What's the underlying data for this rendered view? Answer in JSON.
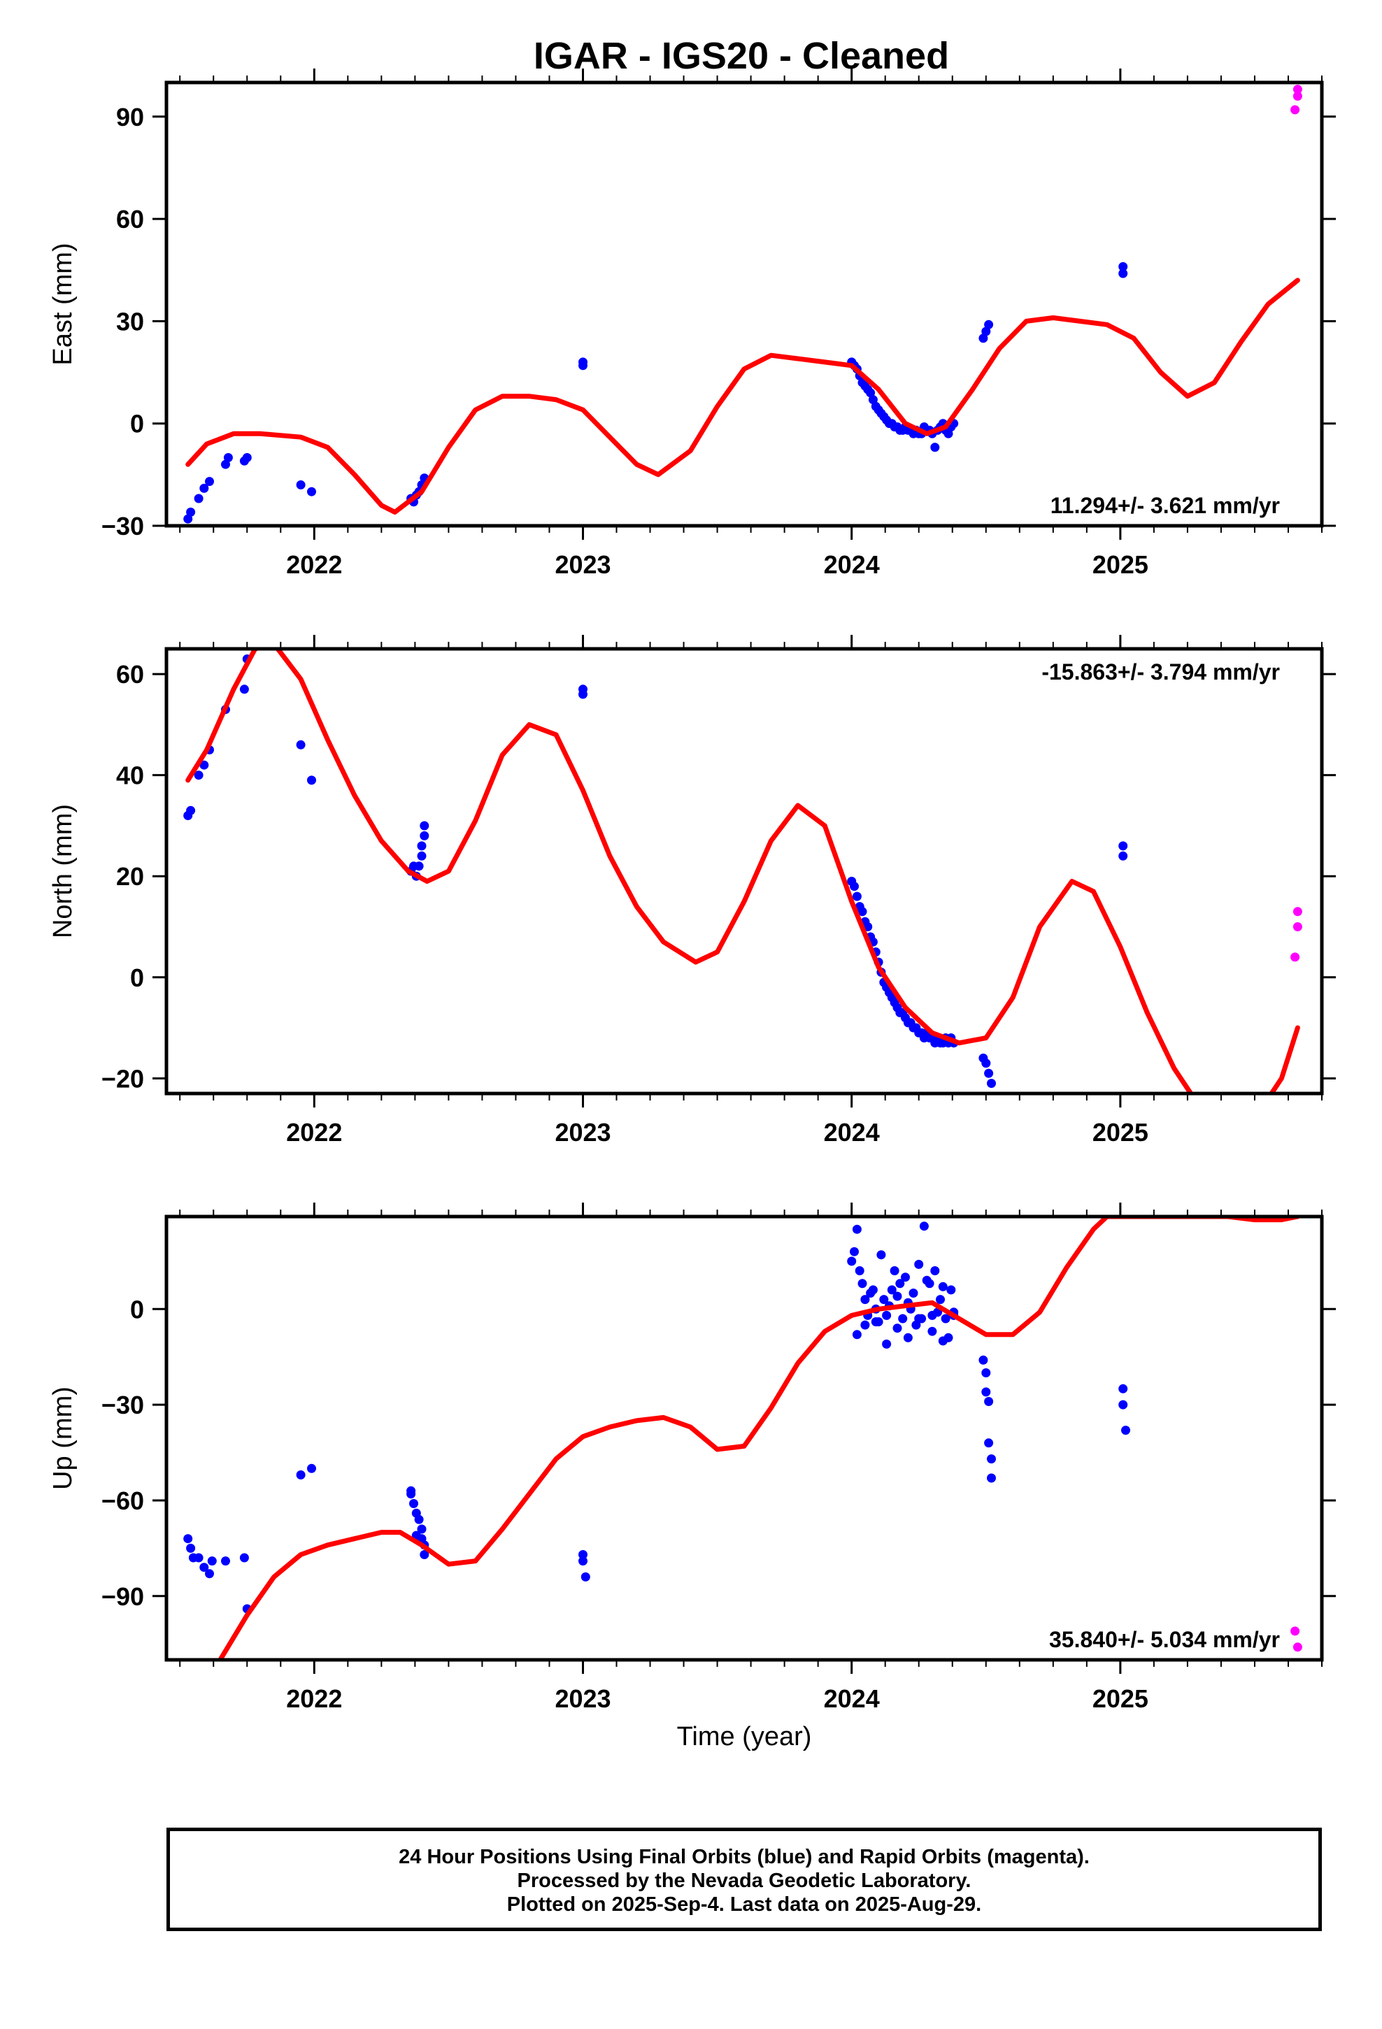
{
  "figure": {
    "title": "IGAR  - IGS20 - Cleaned",
    "xlabel": "Time (year)",
    "footer_lines": [
      "24 Hour Positions Using Final Orbits (blue) and Rapid Orbits (magenta).",
      "Processed by the Nevada Geodetic Laboratory.",
      "Plotted on 2025-Sep-4. Last data on 2025-Aug-29."
    ],
    "colors": {
      "final": "#0000ff",
      "rapid": "#ff00ff",
      "model": "#ff0000"
    }
  },
  "chart_data": [
    {
      "type": "scatter",
      "ylabel": "East (mm)",
      "rate_label": "11.294+/- 3.621 mm/yr",
      "rate_position": "bottom-right",
      "xlim": [
        2021.45,
        2025.75
      ],
      "ylim": [
        -30,
        100
      ],
      "xticks": [
        2022,
        2023,
        2024,
        2025
      ],
      "yticks": [
        -30,
        0,
        30,
        60,
        90
      ],
      "series": [
        {
          "role": "final",
          "x": [
            2021.53,
            2021.54,
            2021.57,
            2021.59,
            2021.61,
            2021.67,
            2021.68,
            2021.74,
            2021.75,
            2021.95,
            2021.99,
            2022.36,
            2022.37,
            2022.38,
            2022.39,
            2022.4,
            2022.41,
            2023.0,
            2023.0,
            2024.0,
            2024.01,
            2024.02,
            2024.03,
            2024.04,
            2024.05,
            2024.06,
            2024.07,
            2024.08,
            2024.09,
            2024.1,
            2024.11,
            2024.12,
            2024.13,
            2024.14,
            2024.15,
            2024.16,
            2024.17,
            2024.18,
            2024.19,
            2024.2,
            2024.21,
            2024.22,
            2024.23,
            2024.24,
            2024.25,
            2024.26,
            2024.27,
            2024.28,
            2024.29,
            2024.3,
            2024.31,
            2024.32,
            2024.33,
            2024.34,
            2024.35,
            2024.36,
            2024.37,
            2024.38,
            2024.49,
            2024.5,
            2024.51,
            2025.01,
            2025.01
          ],
          "y": [
            -28,
            -26,
            -22,
            -19,
            -17,
            -12,
            -10,
            -11,
            -10,
            -18,
            -20,
            -22,
            -23,
            -21,
            -20,
            -18,
            -16,
            17,
            18,
            18,
            17,
            16,
            14,
            12,
            11,
            10,
            9,
            7,
            5,
            4,
            3,
            2,
            1,
            0,
            0,
            -1,
            -1,
            -2,
            -2,
            -1,
            -2,
            -2,
            -3,
            -2,
            -3,
            -3,
            -1,
            -2,
            -2,
            -3,
            -7,
            -2,
            -1,
            0,
            -2,
            -3,
            -1,
            0,
            25,
            27,
            29,
            44,
            46
          ]
        },
        {
          "role": "rapid",
          "x": [
            2025.65,
            2025.66,
            2025.66
          ],
          "y": [
            92,
            96,
            98
          ]
        },
        {
          "role": "model",
          "x": [
            2021.53,
            2021.6,
            2021.7,
            2021.8,
            2021.95,
            2022.05,
            2022.15,
            2022.25,
            2022.3,
            2022.4,
            2022.5,
            2022.6,
            2022.7,
            2022.8,
            2022.9,
            2023.0,
            2023.1,
            2023.2,
            2023.28,
            2023.4,
            2023.5,
            2023.6,
            2023.7,
            2023.8,
            2023.9,
            2024.0,
            2024.1,
            2024.2,
            2024.28,
            2024.35,
            2024.45,
            2024.55,
            2024.65,
            2024.75,
            2024.85,
            2024.95,
            2025.05,
            2025.15,
            2025.25,
            2025.35,
            2025.45,
            2025.55,
            2025.66
          ],
          "y": [
            -12,
            -6,
            -3,
            -3,
            -4,
            -7,
            -15,
            -24,
            -26,
            -20,
            -7,
            4,
            8,
            8,
            7,
            4,
            -4,
            -12,
            -15,
            -8,
            5,
            16,
            20,
            19,
            18,
            17,
            10,
            0,
            -3,
            -1,
            10,
            22,
            30,
            31,
            30,
            29,
            25,
            15,
            8,
            12,
            24,
            35,
            42
          ]
        }
      ]
    },
    {
      "type": "scatter",
      "ylabel": "North (mm)",
      "rate_label": "-15.863+/- 3.794 mm/yr",
      "rate_position": "top-right",
      "xlim": [
        2021.45,
        2025.75
      ],
      "ylim": [
        -23,
        65
      ],
      "xticks": [
        2022,
        2023,
        2024,
        2025
      ],
      "yticks": [
        -20,
        0,
        20,
        40,
        60
      ],
      "series": [
        {
          "role": "final",
          "x": [
            2021.53,
            2021.54,
            2021.57,
            2021.59,
            2021.61,
            2021.67,
            2021.74,
            2021.75,
            2021.95,
            2021.99,
            2022.36,
            2022.37,
            2022.38,
            2022.39,
            2022.4,
            2022.4,
            2022.41,
            2022.41,
            2023.0,
            2023.0,
            2024.0,
            2024.01,
            2024.02,
            2024.03,
            2024.04,
            2024.05,
            2024.06,
            2024.07,
            2024.08,
            2024.09,
            2024.1,
            2024.11,
            2024.12,
            2024.13,
            2024.14,
            2024.15,
            2024.16,
            2024.17,
            2024.18,
            2024.19,
            2024.2,
            2024.21,
            2024.22,
            2024.23,
            2024.24,
            2024.25,
            2024.26,
            2024.27,
            2024.28,
            2024.29,
            2024.3,
            2024.31,
            2024.32,
            2024.33,
            2024.34,
            2024.35,
            2024.36,
            2024.37,
            2024.38,
            2024.49,
            2024.5,
            2024.51,
            2024.52,
            2025.01,
            2025.01
          ],
          "y": [
            32,
            33,
            40,
            42,
            45,
            53,
            57,
            63,
            46,
            39,
            21,
            22,
            20,
            22,
            24,
            26,
            28,
            30,
            56,
            57,
            19,
            18,
            16,
            14,
            13,
            11,
            10,
            8,
            7,
            5,
            3,
            1,
            -1,
            -2,
            -3,
            -4,
            -5,
            -6,
            -7,
            -7,
            -8,
            -9,
            -9,
            -10,
            -10,
            -11,
            -11,
            -12,
            -11,
            -12,
            -12,
            -13,
            -12,
            -13,
            -13,
            -12,
            -13,
            -12,
            -13,
            -16,
            -17,
            -19,
            -21,
            24,
            26
          ]
        },
        {
          "role": "rapid",
          "x": [
            2025.65,
            2025.66,
            2025.66
          ],
          "y": [
            4,
            10,
            13
          ]
        },
        {
          "role": "model",
          "x": [
            2021.53,
            2021.6,
            2021.7,
            2021.78,
            2021.85,
            2021.95,
            2022.05,
            2022.15,
            2022.25,
            2022.35,
            2022.42,
            2022.5,
            2022.6,
            2022.7,
            2022.8,
            2022.9,
            2023.0,
            2023.1,
            2023.2,
            2023.3,
            2023.42,
            2023.5,
            2023.6,
            2023.7,
            2023.8,
            2023.9,
            2024.0,
            2024.1,
            2024.2,
            2024.3,
            2024.4,
            2024.5,
            2024.6,
            2024.7,
            2024.82,
            2024.9,
            2025.0,
            2025.1,
            2025.2,
            2025.3,
            2025.4,
            2025.5,
            2025.6,
            2025.66
          ],
          "y": [
            39,
            45,
            57,
            65,
            66,
            59,
            47,
            36,
            27,
            21,
            19,
            21,
            31,
            44,
            50,
            48,
            37,
            24,
            14,
            7,
            3,
            5,
            15,
            27,
            34,
            30,
            15,
            2,
            -6,
            -11,
            -13,
            -12,
            -4,
            10,
            19,
            17,
            6,
            -7,
            -18,
            -26,
            -29,
            -28,
            -20,
            -10
          ]
        }
      ]
    },
    {
      "type": "scatter",
      "ylabel": "Up (mm)",
      "rate_label": "35.840+/- 5.034 mm/yr",
      "rate_position": "bottom-right",
      "xlim": [
        2021.45,
        2025.75
      ],
      "ylim": [
        -110,
        29
      ],
      "xticks": [
        2022,
        2023,
        2024,
        2025
      ],
      "yticks": [
        -90,
        -60,
        -30,
        0
      ],
      "series": [
        {
          "role": "final",
          "x": [
            2021.53,
            2021.54,
            2021.55,
            2021.57,
            2021.59,
            2021.61,
            2021.62,
            2021.67,
            2021.74,
            2021.75,
            2021.95,
            2021.99,
            2022.36,
            2022.37,
            2022.38,
            2022.39,
            2022.4,
            2022.4,
            2022.41,
            2022.41,
            2022.36,
            2022.38,
            2023.0,
            2023.0,
            2023.01,
            2024.0,
            2024.01,
            2024.02,
            2024.03,
            2024.04,
            2024.05,
            2024.06,
            2024.07,
            2024.08,
            2024.09,
            2024.1,
            2024.11,
            2024.12,
            2024.13,
            2024.14,
            2024.15,
            2024.16,
            2024.17,
            2024.18,
            2024.19,
            2024.2,
            2024.21,
            2024.22,
            2024.23,
            2024.24,
            2024.25,
            2024.26,
            2024.27,
            2024.28,
            2024.29,
            2024.3,
            2024.31,
            2024.32,
            2024.33,
            2024.34,
            2024.35,
            2024.36,
            2024.37,
            2024.38,
            2024.02,
            2024.05,
            2024.09,
            2024.13,
            2024.17,
            2024.21,
            2024.25,
            2024.3,
            2024.34,
            2024.38,
            2024.49,
            2024.5,
            2024.5,
            2024.51,
            2024.51,
            2024.52,
            2024.52,
            2025.01,
            2025.01,
            2025.02
          ],
          "y": [
            -72,
            -75,
            -78,
            -78,
            -81,
            -83,
            -79,
            -79,
            -78,
            -94,
            -52,
            -50,
            -57,
            -61,
            -64,
            -66,
            -69,
            -72,
            -74,
            -77,
            -58,
            -71,
            -77,
            -79,
            -84,
            15,
            18,
            25,
            12,
            8,
            3,
            -2,
            5,
            6,
            0,
            -4,
            17,
            3,
            -2,
            1,
            6,
            12,
            4,
            8,
            -3,
            10,
            2,
            0,
            5,
            -5,
            14,
            -3,
            26,
            9,
            8,
            -7,
            12,
            -1,
            3,
            7,
            -3,
            -9,
            6,
            -2,
            -8,
            -5,
            -4,
            -11,
            -6,
            -9,
            -3,
            -2,
            -10,
            -1,
            -16,
            -20,
            -26,
            -29,
            -42,
            -47,
            -53,
            -25,
            -30,
            -38
          ]
        },
        {
          "role": "rapid",
          "x": [
            2025.65,
            2025.66
          ],
          "y": [
            -101,
            -106
          ]
        },
        {
          "role": "model",
          "x": [
            2021.65,
            2021.75,
            2021.85,
            2021.95,
            2022.05,
            2022.15,
            2022.25,
            2022.32,
            2022.4,
            2022.5,
            2022.6,
            2022.7,
            2022.8,
            2022.9,
            2023.0,
            2023.1,
            2023.2,
            2023.3,
            2023.4,
            2023.5,
            2023.6,
            2023.7,
            2023.8,
            2023.9,
            2024.0,
            2024.1,
            2024.2,
            2024.3,
            2024.4,
            2024.5,
            2024.6,
            2024.7,
            2024.8,
            2024.9,
            2024.95,
            2025.4,
            2025.5,
            2025.6,
            2025.66
          ],
          "y": [
            -110,
            -96,
            -84,
            -77,
            -74,
            -72,
            -70,
            -70,
            -74,
            -80,
            -79,
            -69,
            -58,
            -47,
            -40,
            -37,
            -35,
            -34,
            -37,
            -44,
            -43,
            -31,
            -17,
            -7,
            -2,
            0,
            1,
            2,
            -3,
            -8,
            -8,
            -1,
            13,
            25,
            29,
            29,
            28,
            28,
            29
          ]
        }
      ]
    }
  ]
}
